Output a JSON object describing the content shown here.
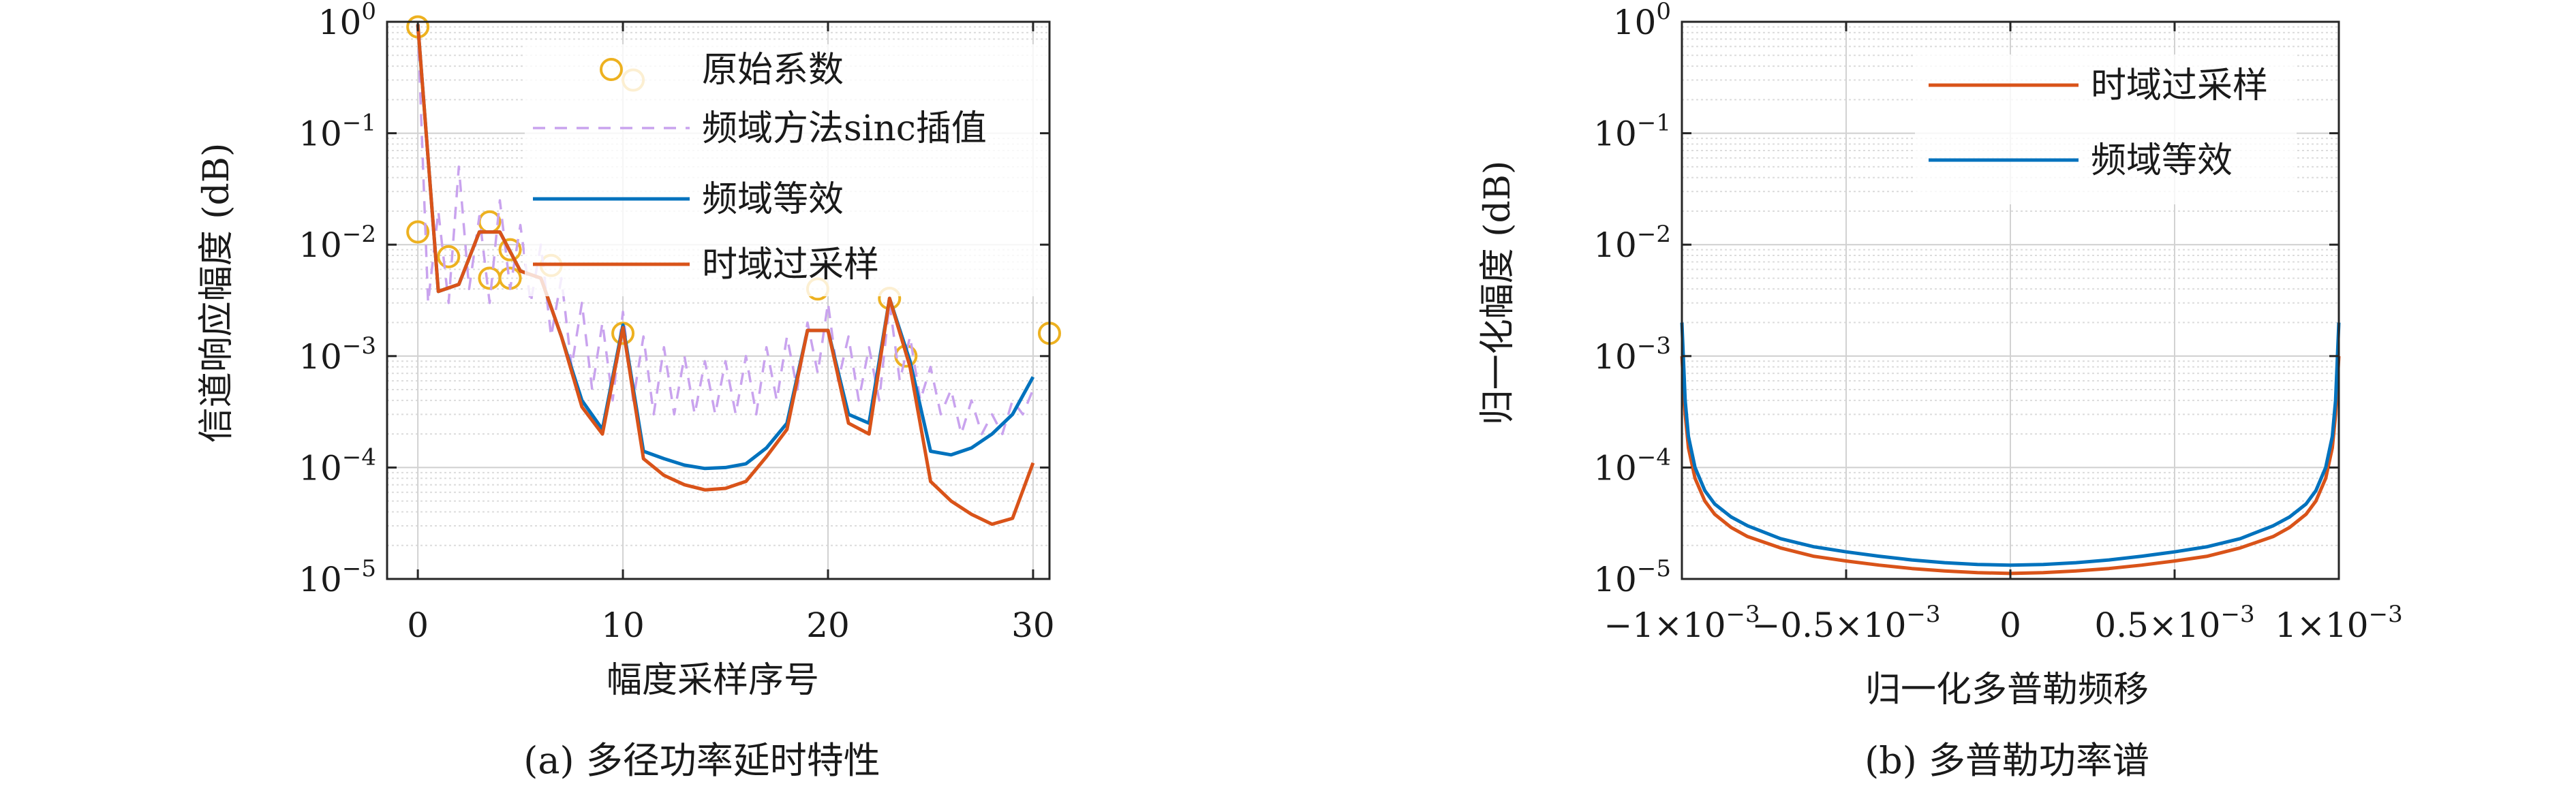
{
  "chart_data": [
    {
      "type": "line",
      "caption": "(a) 多径功率延时特性",
      "xlabel": "幅度采样序号",
      "ylabel": "信道响应幅度 (dB)",
      "xlim": [
        -1.5,
        30.8
      ],
      "ylim": [
        1e-05,
        1
      ],
      "yscale": "log",
      "grid": true,
      "legend_position": "top-right",
      "xticks": [
        {
          "value": 0,
          "label": "0"
        },
        {
          "value": 10,
          "label": "10"
        },
        {
          "value": 20,
          "label": "20"
        },
        {
          "value": 30,
          "label": "30"
        }
      ],
      "yticks": [
        {
          "value": 1,
          "base": "10",
          "exp": "0"
        },
        {
          "value": 0.1,
          "base": "10",
          "exp": "−1"
        },
        {
          "value": 0.01,
          "base": "10",
          "exp": "−2"
        },
        {
          "value": 0.001,
          "base": "10",
          "exp": "−3"
        },
        {
          "value": 0.0001,
          "base": "10",
          "exp": "−4"
        },
        {
          "value": 1e-05,
          "base": "10",
          "exp": "−5"
        }
      ],
      "series": [
        {
          "name": "原始系数",
          "style": "markers",
          "color": "#EDB120",
          "x": [
            0,
            0,
            1.5,
            3.5,
            3.5,
            4.5,
            4.5,
            6.5,
            10,
            10.5,
            19.5,
            23,
            23.8,
            30.8
          ],
          "y": [
            0.9,
            0.013,
            0.0078,
            0.016,
            0.005,
            0.009,
            0.005,
            0.0065,
            0.0016,
            0.3,
            0.004,
            0.0033,
            0.001,
            0.0016
          ]
        },
        {
          "name": "频域方法sinc插值",
          "style": "dashed",
          "color": "#C9A3EE",
          "x": [
            0,
            0.5,
            1,
            1.5,
            2,
            2.5,
            3,
            3.5,
            4,
            4.5,
            5,
            5.5,
            6,
            6.5,
            7,
            7.5,
            8,
            8.5,
            9,
            9.5,
            10,
            10.5,
            11,
            11.5,
            12,
            12.5,
            13,
            13.5,
            14,
            14.5,
            15,
            15.5,
            16,
            16.5,
            17,
            17.5,
            18,
            18.5,
            19,
            19.5,
            20,
            20.5,
            21,
            21.5,
            22,
            22.5,
            23,
            23.5,
            24,
            24.5,
            25,
            25.5,
            26,
            26.5,
            27,
            27.5,
            28,
            28.5,
            29,
            29.5,
            30
          ],
          "y": [
            0.9,
            0.003,
            0.02,
            0.003,
            0.05,
            0.004,
            0.018,
            0.003,
            0.025,
            0.004,
            0.015,
            0.003,
            0.01,
            0.0015,
            0.005,
            0.0008,
            0.003,
            0.0005,
            0.002,
            0.0004,
            0.0025,
            0.0004,
            0.0015,
            0.0003,
            0.0012,
            0.0003,
            0.001,
            0.0003,
            0.0009,
            0.0003,
            0.0009,
            0.0003,
            0.001,
            0.0003,
            0.0012,
            0.0004,
            0.0015,
            0.0005,
            0.002,
            0.0007,
            0.003,
            0.0006,
            0.0015,
            0.0004,
            0.0012,
            0.0004,
            0.003,
            0.0006,
            0.0015,
            0.0004,
            0.0008,
            0.0003,
            0.0005,
            0.0002,
            0.0004,
            0.0002,
            0.0003,
            0.0002,
            0.0004,
            0.0003,
            0.0005
          ]
        },
        {
          "name": "频域等效",
          "style": "solid",
          "color": "#0072BD",
          "x": [
            0,
            1,
            2,
            3,
            4,
            5,
            6,
            7,
            8,
            9,
            10,
            11,
            12,
            13,
            14,
            15,
            16,
            17,
            18,
            19,
            20,
            21,
            22,
            23,
            24,
            25,
            26,
            27,
            28,
            29,
            30
          ],
          "y": [
            0.95,
            0.0038,
            0.0044,
            0.013,
            0.013,
            0.0058,
            0.005,
            0.0015,
            0.0004,
            0.00022,
            0.0019,
            0.00014,
            0.00012,
            0.000105,
            9.8e-05,
            0.0001,
            0.000108,
            0.00015,
            0.00025,
            0.0017,
            0.0017,
            0.0003,
            0.00025,
            0.0033,
            0.0009,
            0.00014,
            0.00013,
            0.00015,
            0.0002,
            0.0003,
            0.00065
          ]
        },
        {
          "name": "时域过采样",
          "style": "solid",
          "color": "#D95319",
          "x": [
            0,
            1,
            2,
            3,
            4,
            5,
            6,
            7,
            8,
            9,
            10,
            11,
            12,
            13,
            14,
            15,
            16,
            17,
            18,
            19,
            20,
            21,
            22,
            23,
            24,
            25,
            26,
            27,
            28,
            29,
            30
          ],
          "y": [
            0.95,
            0.0038,
            0.0044,
            0.013,
            0.013,
            0.0058,
            0.005,
            0.0015,
            0.00035,
            0.0002,
            0.0018,
            0.00012,
            8.5e-05,
            7e-05,
            6.3e-05,
            6.5e-05,
            7.5e-05,
            0.000125,
            0.00022,
            0.0017,
            0.0017,
            0.00025,
            0.0002,
            0.0033,
            0.0008,
            7.5e-05,
            5e-05,
            3.8e-05,
            3.1e-05,
            3.5e-05,
            0.00011
          ]
        }
      ]
    },
    {
      "type": "line",
      "caption": "(b) 多普勒功率谱",
      "xlabel": "归一化多普勒频移",
      "ylabel": "归一化幅度 (dB)",
      "xlim": [
        -0.001,
        0.001
      ],
      "ylim": [
        1e-05,
        1
      ],
      "yscale": "log",
      "grid": true,
      "legend_position": "top-right",
      "xticks": [
        {
          "value": -0.001,
          "label": "−1×10",
          "exp": "−3"
        },
        {
          "value": -0.0005,
          "label": "−0.5×10",
          "exp": "−3"
        },
        {
          "value": 0,
          "label": "0",
          "exp": ""
        },
        {
          "value": 0.0005,
          "label": "0.5×10",
          "exp": "−3"
        },
        {
          "value": 0.001,
          "label": "1×10",
          "exp": "−3"
        }
      ],
      "yticks": [
        {
          "value": 1,
          "base": "10",
          "exp": "0"
        },
        {
          "value": 0.1,
          "base": "10",
          "exp": "−1"
        },
        {
          "value": 0.01,
          "base": "10",
          "exp": "−2"
        },
        {
          "value": 0.001,
          "base": "10",
          "exp": "−3"
        },
        {
          "value": 0.0001,
          "base": "10",
          "exp": "−4"
        },
        {
          "value": 1e-05,
          "base": "10",
          "exp": "−5"
        }
      ],
      "series": [
        {
          "name": "时域过采样",
          "style": "solid",
          "color": "#D95319",
          "x": [
            -0.001,
            -0.00099,
            -0.00098,
            -0.00096,
            -0.00093,
            -0.0009,
            -0.00085,
            -0.0008,
            -0.0007,
            -0.0006,
            -0.0005,
            -0.0004,
            -0.0003,
            -0.0002,
            -0.0001,
            0,
            0.0001,
            0.0002,
            0.0003,
            0.0004,
            0.0005,
            0.0006,
            0.0007,
            0.0008,
            0.00085,
            0.0009,
            0.00093,
            0.00096,
            0.00098,
            0.00099,
            0.001
          ],
          "y": [
            0.001,
            0.0003,
            0.00015,
            8e-05,
            5e-05,
            3.8e-05,
            2.9e-05,
            2.4e-05,
            1.9e-05,
            1.6e-05,
            1.45e-05,
            1.33e-05,
            1.24e-05,
            1.18e-05,
            1.14e-05,
            1.12e-05,
            1.14e-05,
            1.18e-05,
            1.24e-05,
            1.33e-05,
            1.45e-05,
            1.6e-05,
            1.9e-05,
            2.4e-05,
            2.9e-05,
            3.8e-05,
            5e-05,
            8e-05,
            0.00015,
            0.0003,
            0.001
          ]
        },
        {
          "name": "频域等效",
          "style": "solid",
          "color": "#0072BD",
          "x": [
            -0.001,
            -0.00099,
            -0.00098,
            -0.00096,
            -0.00093,
            -0.0009,
            -0.00085,
            -0.0008,
            -0.0007,
            -0.0006,
            -0.0005,
            -0.0004,
            -0.0003,
            -0.0002,
            -0.0001,
            0,
            0.0001,
            0.0002,
            0.0003,
            0.0004,
            0.0005,
            0.0006,
            0.0007,
            0.0008,
            0.00085,
            0.0009,
            0.00093,
            0.00096,
            0.00098,
            0.00099,
            0.001
          ],
          "y": [
            0.002,
            0.0004,
            0.00019,
            0.0001,
            6.2e-05,
            4.7e-05,
            3.6e-05,
            3e-05,
            2.3e-05,
            1.95e-05,
            1.75e-05,
            1.6e-05,
            1.48e-05,
            1.4e-05,
            1.35e-05,
            1.33e-05,
            1.35e-05,
            1.4e-05,
            1.48e-05,
            1.6e-05,
            1.75e-05,
            1.95e-05,
            2.3e-05,
            3e-05,
            3.6e-05,
            4.7e-05,
            6.2e-05,
            0.0001,
            0.00019,
            0.0004,
            0.002
          ]
        }
      ]
    }
  ]
}
